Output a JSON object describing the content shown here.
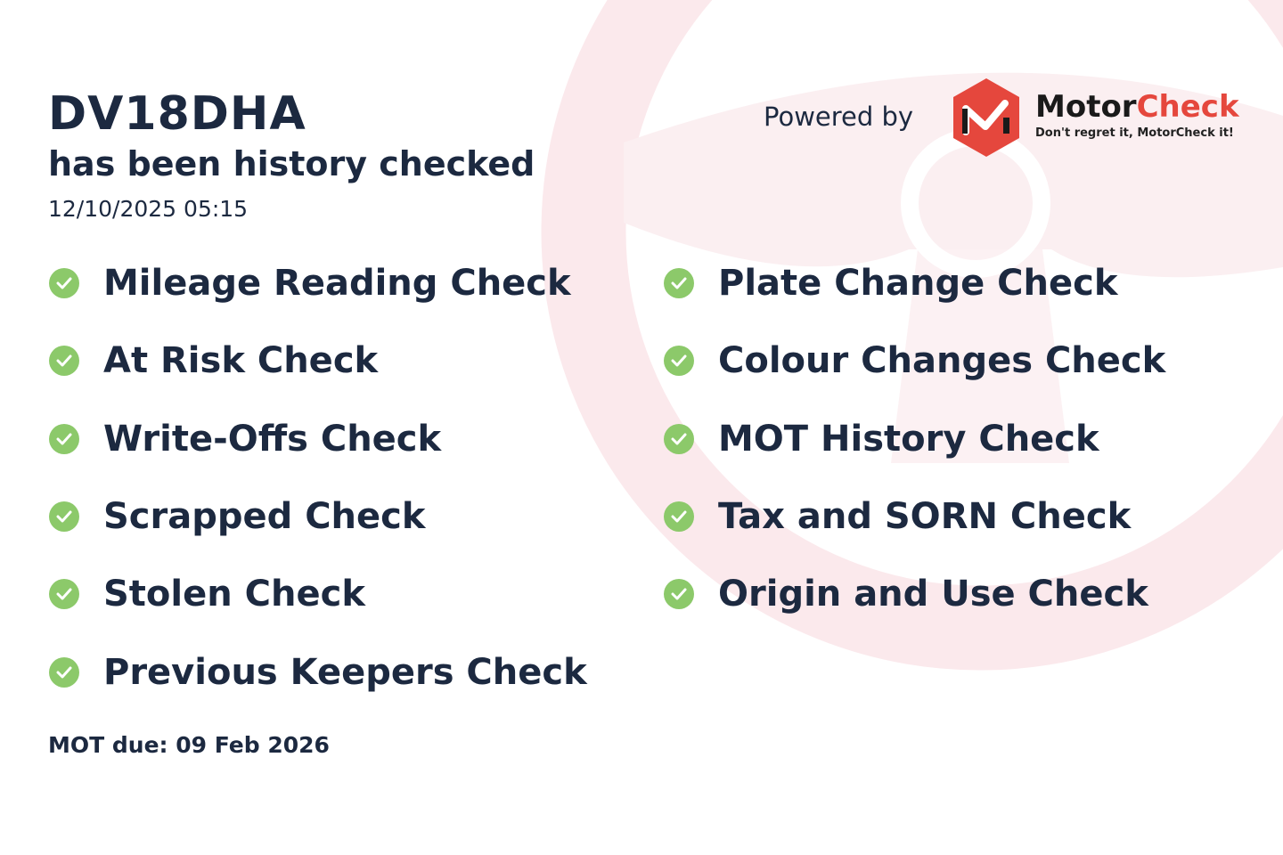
{
  "header": {
    "plate": "DV18DHA",
    "subtitle": "has been history checked",
    "datetime": "12/10/2025 05:15"
  },
  "branding": {
    "powered_by": "Powered by",
    "brand_part1": "Motor",
    "brand_part2": "Check",
    "tagline": "Don't regret it, MotorCheck it!",
    "brand_color": "#e5473d"
  },
  "checks_left": [
    {
      "label": "Mileage Reading Check"
    },
    {
      "label": "At Risk Check"
    },
    {
      "label": "Write-Offs Check"
    },
    {
      "label": "Scrapped Check"
    },
    {
      "label": "Stolen Check"
    },
    {
      "label": "Previous Keepers Check"
    }
  ],
  "checks_right": [
    {
      "label": "Plate Change Check"
    },
    {
      "label": "Colour Changes Check"
    },
    {
      "label": "MOT History Check"
    },
    {
      "label": "Tax and SORN Check"
    },
    {
      "label": "Origin and Use Check"
    }
  ],
  "check_icon": "check-circle-icon",
  "check_color": "#8cc96a",
  "footer": {
    "mot_due": "MOT due: 09 Feb 2026"
  }
}
